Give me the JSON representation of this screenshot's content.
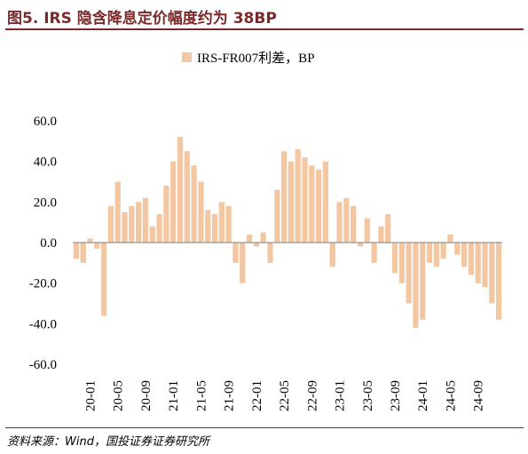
{
  "header": {
    "title": "图5. IRS 隐含降息定价幅度约为 38BP"
  },
  "footer": {
    "source": "资料来源：Wind，国投证券证券研究所"
  },
  "colors": {
    "bar": "#f4c7a3",
    "title": "#7a2a2a",
    "axis": "#7f7f7f"
  },
  "chart_data": {
    "type": "bar",
    "legend": {
      "position": "top-center"
    },
    "series": [
      {
        "name": "IRS-FR007利差，BP",
        "x": [
          "19-11",
          "19-12",
          "20-01",
          "20-02",
          "20-03",
          "20-04",
          "20-05",
          "20-06",
          "20-07",
          "20-08",
          "20-09",
          "20-10",
          "20-11",
          "20-12",
          "21-01",
          "21-02",
          "21-03",
          "21-04",
          "21-05",
          "21-06",
          "21-07",
          "21-08",
          "21-09",
          "21-10",
          "21-11",
          "21-12",
          "22-01",
          "22-02",
          "22-03",
          "22-04",
          "22-05",
          "22-06",
          "22-07",
          "22-08",
          "22-09",
          "22-10",
          "22-11",
          "22-12",
          "23-01",
          "23-02",
          "23-03",
          "23-04",
          "23-05",
          "23-06",
          "23-07",
          "23-08",
          "23-09",
          "23-10",
          "23-11",
          "23-12",
          "24-01",
          "24-02",
          "24-03",
          "24-04",
          "24-05",
          "24-06",
          "24-07",
          "24-08",
          "24-09",
          "24-10",
          "24-11",
          "24-12"
        ],
        "values": [
          -8,
          -10,
          2,
          -3,
          -36,
          18,
          30,
          15,
          18,
          20,
          22,
          8,
          14,
          28,
          40,
          52,
          45,
          38,
          30,
          16,
          14,
          20,
          18,
          -10,
          -20,
          4,
          -2,
          5,
          -10,
          26,
          45,
          40,
          46,
          42,
          38,
          36,
          40,
          -12,
          20,
          22,
          18,
          -2,
          12,
          -10,
          8,
          14,
          -15,
          -20,
          -30,
          -42,
          -38,
          -10,
          -12,
          -8,
          4,
          -6,
          -12,
          -16,
          -20,
          -22,
          -30,
          -38
        ]
      }
    ],
    "xtick_labels": [
      "20-01",
      "20-05",
      "20-09",
      "21-01",
      "21-05",
      "21-09",
      "22-01",
      "22-05",
      "22-09",
      "23-01",
      "23-05",
      "23-09",
      "24-01",
      "24-05",
      "24-09"
    ],
    "yticks": [
      "60.0",
      "40.0",
      "20.0",
      "0.0",
      "-20.0",
      "-40.0",
      "-60.0"
    ],
    "ylim": [
      -60,
      60
    ],
    "grid": false
  }
}
